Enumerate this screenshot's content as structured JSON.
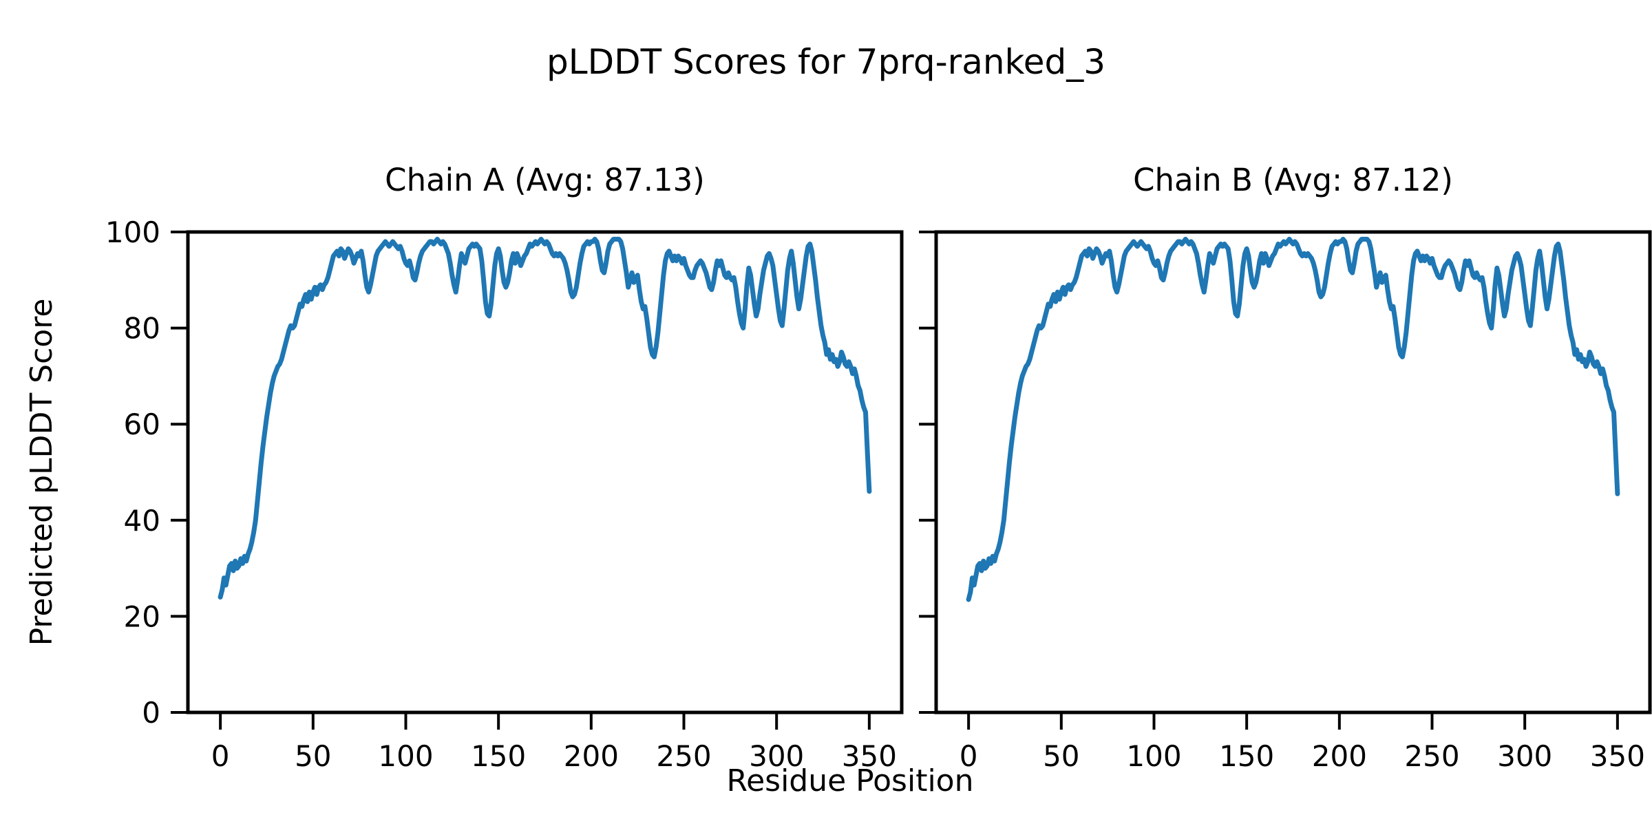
{
  "figure": {
    "suptitle": "pLDDT Scores for 7prq-ranked_3",
    "xlabel": "Residue Position",
    "ylabel": "Predicted pLDDT Score"
  },
  "chart_data": [
    {
      "type": "line",
      "title": "Chain A (Avg: 87.13)",
      "chain": "A",
      "avg": 87.13,
      "xlim": [
        -17.5,
        367.5
      ],
      "ylim": [
        0,
        100
      ],
      "xticks": [
        0,
        50,
        100,
        150,
        200,
        250,
        300,
        350
      ],
      "yticks": [
        0,
        20,
        40,
        60,
        80,
        100
      ],
      "show_ytick_labels": true,
      "line_color": "#1f77b4",
      "x0": 0,
      "x_step": 1,
      "y": [
        24,
        25.5,
        28,
        26.5,
        28.5,
        30.5,
        31,
        29.5,
        31.5,
        30,
        30.5,
        32,
        31,
        32.5,
        31.5,
        33,
        34,
        35.5,
        37.5,
        40,
        44,
        48,
        52,
        55.5,
        58.5,
        61.5,
        64,
        66.5,
        68.5,
        70,
        71,
        72,
        72.5,
        73.5,
        75,
        76.5,
        78,
        79.5,
        80.5,
        80,
        80.5,
        82,
        83.5,
        85,
        84.5,
        86,
        87,
        85.5,
        87.5,
        86,
        87.5,
        88.5,
        87,
        88.5,
        89,
        88,
        89,
        89.5,
        90.5,
        92,
        93.5,
        95,
        95.5,
        96,
        95,
        96.5,
        96,
        94.5,
        95.5,
        96.5,
        96,
        95,
        93.5,
        94.5,
        95.5,
        95,
        96,
        94,
        91,
        88.5,
        87.5,
        89,
        91,
        93,
        95,
        96,
        96.5,
        97,
        97.5,
        98,
        97.5,
        97,
        97.5,
        98,
        97.5,
        97,
        96.5,
        97,
        96,
        94.5,
        93.5,
        93,
        94,
        92.5,
        90.5,
        90,
        91.5,
        93.5,
        95,
        96,
        96.5,
        97,
        97.5,
        98,
        98,
        97.5,
        98,
        98.5,
        98,
        97.5,
        98,
        97.5,
        96.5,
        95.5,
        93.5,
        91,
        89,
        87.5,
        90,
        93,
        95.5,
        94.5,
        93.5,
        95,
        96.5,
        97,
        97.5,
        97,
        97.5,
        97,
        96.5,
        94,
        90,
        85.5,
        83,
        82.5,
        85,
        89,
        93,
        95.5,
        96.5,
        95,
        92,
        89.5,
        88.5,
        89.5,
        91.5,
        94,
        95.5,
        93.5,
        95.5,
        94.5,
        93,
        94,
        95,
        95.5,
        96.5,
        97.5,
        97,
        97.5,
        98,
        97.5,
        98,
        98.5,
        98,
        97.5,
        98,
        97.5,
        96.5,
        95.5,
        95,
        95.5,
        95,
        95.5,
        95,
        94.5,
        93.5,
        92,
        90,
        87.5,
        86.5,
        87,
        88.5,
        91,
        93.5,
        95.5,
        97,
        97.5,
        98,
        97.5,
        98,
        98,
        98.5,
        98,
        96.5,
        94,
        92,
        91.5,
        93.5,
        96,
        97.5,
        98,
        98.5,
        98.5,
        98.5,
        98.5,
        98,
        96.5,
        94,
        91.5,
        88.5,
        90,
        91.5,
        89.5,
        90.5,
        91,
        88,
        85.5,
        84,
        84.5,
        82,
        79,
        76,
        74.5,
        74,
        76,
        79,
        83,
        87,
        91,
        94,
        95.5,
        96,
        95,
        94,
        95,
        94,
        95,
        94.5,
        93.5,
        94.5,
        93,
        92,
        91,
        90.5,
        90.5,
        92,
        93,
        93.5,
        94,
        93.5,
        92.5,
        91.5,
        90,
        88.5,
        88,
        89.5,
        92,
        94,
        93,
        94,
        92.5,
        91,
        90.5,
        91.5,
        90.5,
        90,
        90.5,
        88.5,
        85.5,
        83,
        81,
        80,
        84,
        89,
        92.5,
        91,
        88,
        85,
        82.5,
        84,
        87,
        89.5,
        92,
        93.5,
        95,
        95.5,
        94.5,
        93,
        90,
        87,
        84,
        81.5,
        80.5,
        84,
        88,
        92,
        94.5,
        96,
        93.5,
        90,
        86.5,
        84,
        86,
        89,
        92,
        95,
        97,
        97.5,
        96,
        93,
        90,
        86.5,
        83.5,
        80.5,
        78.5,
        77,
        74.5,
        75.5,
        73.5,
        74.5,
        73,
        73.5,
        72,
        73,
        75,
        74,
        72.5,
        72,
        73,
        72,
        70.5,
        71.5,
        70,
        68,
        67,
        65,
        63.5,
        62.5,
        54,
        46
      ]
    },
    {
      "type": "line",
      "title": "Chain B (Avg: 87.12)",
      "chain": "B",
      "avg": 87.12,
      "xlim": [
        -17.5,
        367.5
      ],
      "ylim": [
        0,
        100
      ],
      "xticks": [
        0,
        50,
        100,
        150,
        200,
        250,
        300,
        350
      ],
      "yticks": [
        0,
        20,
        40,
        60,
        80,
        100
      ],
      "show_ytick_labels": false,
      "line_color": "#1f77b4",
      "x0": 0,
      "x_step": 1,
      "y": [
        23.5,
        25,
        28,
        26.5,
        28.5,
        30.5,
        31,
        29.5,
        31.5,
        30,
        30.5,
        32,
        31,
        32.5,
        31.5,
        33,
        34,
        35.5,
        37.5,
        40,
        44,
        48,
        52,
        55.5,
        58.5,
        61.5,
        64,
        66.5,
        68.5,
        70,
        71,
        72,
        72.5,
        73.5,
        75,
        76.5,
        78,
        79.5,
        80.5,
        80,
        80.5,
        82,
        83.5,
        85,
        84.5,
        86,
        87,
        85.5,
        87.5,
        86,
        87.5,
        88.5,
        87,
        88.5,
        89,
        88,
        89,
        89.5,
        90.5,
        92,
        93.5,
        95,
        95.5,
        96,
        95,
        96.5,
        96,
        94.5,
        95.5,
        96.5,
        96,
        95,
        93.5,
        94.5,
        95.5,
        95,
        96,
        94,
        91,
        88.5,
        87.5,
        89,
        91,
        93,
        95,
        96,
        96.5,
        97,
        97.5,
        98,
        97.5,
        97,
        97.5,
        98,
        97.5,
        97,
        96.5,
        97,
        96,
        94.5,
        93.5,
        93,
        94,
        92.5,
        90.5,
        90,
        91.5,
        93.5,
        95,
        96,
        96.5,
        97,
        97.5,
        98,
        98,
        97.5,
        98,
        98.5,
        98,
        97.5,
        98,
        97.5,
        96.5,
        95.5,
        93.5,
        91,
        89,
        87.5,
        90,
        93,
        95.5,
        94.5,
        93.5,
        95,
        96.5,
        97,
        97.5,
        97,
        97.5,
        97,
        96.5,
        94,
        90,
        85.5,
        83,
        82.5,
        85,
        89,
        93,
        95.5,
        96.5,
        95,
        92,
        89.5,
        88.5,
        89.5,
        91.5,
        94,
        95.5,
        93.5,
        95.5,
        94.5,
        93,
        94,
        95,
        95.5,
        96.5,
        97.5,
        97,
        97.5,
        98,
        97.5,
        98,
        98.5,
        98,
        97.5,
        98,
        97.5,
        96.5,
        95.5,
        95,
        95.5,
        95,
        95.5,
        95,
        94.5,
        93.5,
        92,
        90,
        87.5,
        86.5,
        87,
        88.5,
        91,
        93.5,
        95.5,
        97,
        97.5,
        98,
        97.5,
        98,
        98,
        98.5,
        98,
        96.5,
        94,
        92,
        91.5,
        93.5,
        96,
        97.5,
        98,
        98.5,
        98.5,
        98.5,
        98.5,
        98,
        96.5,
        94,
        91.5,
        88.5,
        90,
        91.5,
        89.5,
        90.5,
        91,
        88,
        85.5,
        84,
        84.5,
        82,
        79,
        76,
        74.5,
        74,
        76,
        79,
        83,
        87,
        91,
        94,
        95.5,
        96,
        95,
        94,
        95,
        94,
        95,
        94.5,
        93.5,
        94.5,
        93,
        92,
        91,
        90.5,
        90.5,
        92,
        93,
        93.5,
        94,
        93.5,
        92.5,
        91.5,
        90,
        88.5,
        88,
        89.5,
        92,
        94,
        93,
        94,
        92.5,
        91,
        90.5,
        91.5,
        90.5,
        90,
        90.5,
        88.5,
        85.5,
        83,
        81,
        80,
        84,
        89,
        92.5,
        91,
        88,
        85,
        82.5,
        84,
        87,
        89.5,
        92,
        93.5,
        95,
        95.5,
        94.5,
        93,
        90,
        87,
        84,
        81.5,
        80.5,
        84,
        88,
        92,
        94.5,
        96,
        93.5,
        90,
        86.5,
        84,
        86,
        89,
        92,
        95,
        97,
        97.5,
        96,
        93,
        90,
        86.5,
        83.5,
        80.5,
        78.5,
        77,
        74.5,
        75.5,
        73.5,
        74.5,
        73,
        73.5,
        72,
        73,
        75,
        74,
        72.5,
        72,
        73,
        72,
        70.5,
        71.5,
        70,
        68,
        67,
        65,
        63.5,
        62.5,
        54,
        45.5
      ]
    }
  ]
}
